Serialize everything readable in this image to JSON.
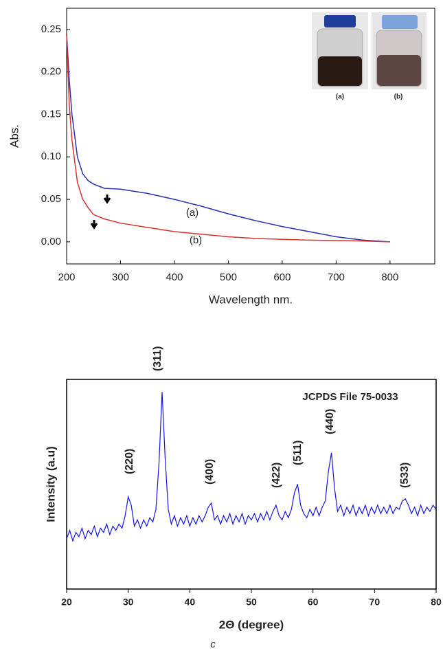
{
  "chart_data": [
    {
      "type": "line",
      "xlabel": "Wavelength nm.",
      "ylabel": "Abs.",
      "x": [
        200,
        205,
        210,
        220,
        230,
        240,
        250,
        270,
        300,
        350,
        400,
        450,
        500,
        550,
        600,
        650,
        700,
        750,
        800
      ],
      "series": [
        {
          "name": "(a)",
          "color": "#2b2fb0",
          "values": [
            0.245,
            0.19,
            0.15,
            0.1,
            0.08,
            0.072,
            0.068,
            0.063,
            0.062,
            0.057,
            0.05,
            0.042,
            0.033,
            0.025,
            0.018,
            0.012,
            0.006,
            0.002,
            0.0
          ]
        },
        {
          "name": "(b)",
          "color": "#d8322a",
          "values": [
            0.245,
            0.16,
            0.12,
            0.07,
            0.05,
            0.04,
            0.032,
            0.027,
            0.022,
            0.017,
            0.012,
            0.009,
            0.006,
            0.004,
            0.003,
            0.002,
            0.0015,
            0.001,
            0.0
          ]
        }
      ],
      "inset_labels": [
        "(a)",
        "(b)"
      ],
      "xlim": [
        200,
        883
      ],
      "ylim": [
        -0.026,
        0.275
      ],
      "xticks": [
        200,
        300,
        400,
        500,
        600,
        700,
        800
      ],
      "yticks": [
        {
          "value": 0,
          "label": "0.00"
        },
        {
          "value": 0.05,
          "label": "0.05"
        },
        {
          "value": 0.1,
          "label": "0.10"
        },
        {
          "value": 0.15,
          "label": "0.15"
        },
        {
          "value": 0.2,
          "label": "0.20"
        },
        {
          "value": 0.25,
          "label": "0.25"
        }
      ]
    },
    {
      "type": "line",
      "xlabel": "2Θ (degree)",
      "ylabel": "Intensity (a.u)",
      "annotation": "JCPDS File 75-0033",
      "peak_labels": [
        "(220)",
        "(311)",
        "(400)",
        "(422)",
        "(511)",
        "(440)",
        "(533)"
      ],
      "x": [
        20,
        20.5,
        21,
        21.5,
        22,
        22.5,
        23,
        23.5,
        24,
        24.5,
        25,
        25.5,
        26,
        26.5,
        27,
        27.5,
        28,
        28.5,
        29,
        29.5,
        30,
        30.5,
        31,
        31.5,
        32,
        32.5,
        33,
        33.5,
        34,
        34.5,
        35,
        35.5,
        36,
        36.5,
        37,
        37.5,
        38,
        38.5,
        39,
        39.5,
        40,
        40.5,
        41,
        41.5,
        42,
        42.5,
        43,
        43.5,
        44,
        44.5,
        45,
        45.5,
        46,
        46.5,
        47,
        47.5,
        48,
        48.5,
        49,
        49.5,
        50,
        50.5,
        51,
        51.5,
        52,
        52.5,
        53,
        53.5,
        54,
        54.5,
        55,
        55.5,
        56,
        56.5,
        57,
        57.5,
        58,
        58.5,
        59,
        59.5,
        60,
        60.5,
        61,
        61.5,
        62,
        62.5,
        63,
        63.5,
        64,
        64.5,
        65,
        65.5,
        66,
        66.5,
        67,
        67.5,
        68,
        68.5,
        69,
        69.5,
        70,
        70.5,
        71,
        71.5,
        72,
        72.5,
        73,
        73.5,
        74,
        74.5,
        75,
        75.5,
        76,
        76.5,
        77,
        77.5,
        78,
        78.5,
        79,
        79.5,
        80
      ],
      "series": [
        {
          "color": "#1414e0",
          "values": [
            24,
            28,
            23,
            27,
            25,
            29,
            24,
            28,
            26,
            30,
            25,
            29,
            27,
            31,
            26,
            30,
            28,
            31,
            29,
            35,
            44,
            40,
            30,
            33,
            29,
            33,
            30,
            34,
            32,
            38,
            60,
            94,
            62,
            38,
            31,
            35,
            30,
            34,
            31,
            35,
            30,
            34,
            31,
            35,
            32,
            35,
            39,
            41,
            33,
            35,
            31,
            35,
            32,
            36,
            31,
            35,
            32,
            36,
            31,
            35,
            33,
            36,
            32,
            36,
            33,
            37,
            33,
            37,
            40,
            35,
            33,
            37,
            34,
            38,
            46,
            50,
            40,
            36,
            34,
            38,
            35,
            39,
            35,
            39,
            42,
            56,
            65,
            48,
            37,
            40,
            35,
            39,
            36,
            40,
            35,
            39,
            36,
            40,
            35,
            39,
            36,
            40,
            36,
            39,
            36,
            40,
            36,
            39,
            38,
            42,
            43,
            40,
            36,
            39,
            35,
            40,
            36,
            39,
            37,
            40,
            38
          ]
        }
      ],
      "xlim": [
        20,
        80
      ],
      "ylim": [
        0,
        100
      ],
      "xticks": [
        20,
        30,
        40,
        50,
        60,
        70,
        80
      ]
    }
  ],
  "caption": "c"
}
